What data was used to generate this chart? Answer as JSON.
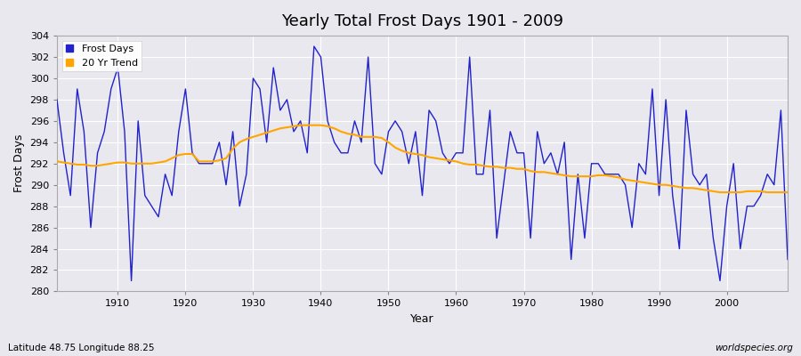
{
  "title": "Yearly Total Frost Days 1901 - 2009",
  "xlabel": "Year",
  "ylabel": "Frost Days",
  "subtitle": "Latitude 48.75 Longitude 88.25",
  "watermark": "worldspecies.org",
  "ylim": [
    280,
    304
  ],
  "yticks": [
    280,
    282,
    284,
    286,
    288,
    290,
    292,
    294,
    296,
    298,
    300,
    302,
    304
  ],
  "xticks": [
    1910,
    1920,
    1930,
    1940,
    1950,
    1960,
    1970,
    1980,
    1990,
    2000
  ],
  "line_color": "#2222cc",
  "trend_color": "#FFA500",
  "bg_color": "#e8e8ee",
  "years": [
    1901,
    1902,
    1903,
    1904,
    1905,
    1906,
    1907,
    1908,
    1909,
    1910,
    1911,
    1912,
    1913,
    1914,
    1915,
    1916,
    1917,
    1918,
    1919,
    1920,
    1921,
    1922,
    1923,
    1924,
    1925,
    1926,
    1927,
    1928,
    1929,
    1930,
    1931,
    1932,
    1933,
    1934,
    1935,
    1936,
    1937,
    1938,
    1939,
    1940,
    1941,
    1942,
    1943,
    1944,
    1945,
    1946,
    1947,
    1948,
    1949,
    1950,
    1951,
    1952,
    1953,
    1954,
    1955,
    1956,
    1957,
    1958,
    1959,
    1960,
    1961,
    1962,
    1963,
    1964,
    1965,
    1966,
    1967,
    1968,
    1969,
    1970,
    1971,
    1972,
    1973,
    1974,
    1975,
    1976,
    1977,
    1978,
    1979,
    1980,
    1981,
    1982,
    1983,
    1984,
    1985,
    1986,
    1987,
    1988,
    1989,
    1990,
    1991,
    1992,
    1993,
    1994,
    1995,
    1996,
    1997,
    1998,
    1999,
    2000,
    2001,
    2002,
    2003,
    2004,
    2005,
    2006,
    2007,
    2008,
    2009
  ],
  "frost_days": [
    298,
    293,
    289,
    299,
    295,
    286,
    293,
    295,
    299,
    301,
    295,
    281,
    296,
    289,
    288,
    287,
    291,
    289,
    295,
    299,
    293,
    292,
    292,
    292,
    294,
    290,
    295,
    288,
    291,
    300,
    299,
    294,
    301,
    297,
    298,
    295,
    296,
    293,
    303,
    302,
    296,
    294,
    293,
    293,
    296,
    294,
    302,
    292,
    291,
    295,
    296,
    295,
    292,
    295,
    289,
    297,
    296,
    293,
    292,
    293,
    293,
    302,
    291,
    291,
    297,
    285,
    290,
    295,
    293,
    293,
    285,
    295,
    292,
    293,
    291,
    294,
    283,
    291,
    285,
    292,
    292,
    291,
    291,
    291,
    290,
    286,
    292,
    291,
    299,
    289,
    298,
    289,
    284,
    297,
    291,
    290,
    291,
    285,
    281,
    288,
    292,
    284,
    288,
    288,
    289,
    291,
    290,
    297,
    283
  ],
  "trend_years": [
    1901,
    1902,
    1903,
    1904,
    1905,
    1906,
    1907,
    1908,
    1909,
    1910,
    1911,
    1912,
    1913,
    1914,
    1915,
    1916,
    1917,
    1918,
    1919,
    1920,
    1921,
    1922,
    1923,
    1924,
    1925,
    1926,
    1927,
    1928,
    1929,
    1930,
    1931,
    1932,
    1933,
    1934,
    1935,
    1936,
    1937,
    1938,
    1939,
    1940,
    1941,
    1942,
    1943,
    1944,
    1945,
    1946,
    1947,
    1948,
    1949,
    1950,
    1951,
    1952,
    1953,
    1954,
    1955,
    1956,
    1957,
    1958,
    1959,
    1960,
    1961,
    1962,
    1963,
    1964,
    1965,
    1966,
    1967,
    1968,
    1969,
    1970,
    1971,
    1972,
    1973,
    1974,
    1975,
    1976,
    1977,
    1978,
    1979,
    1980,
    1981,
    1982,
    1983,
    1984,
    1985,
    1986,
    1987,
    1988,
    1989,
    1990,
    1991,
    1992,
    1993,
    1994,
    1995,
    1996,
    1997,
    1998,
    1999,
    2000,
    2001,
    2002,
    2003,
    2004,
    2005,
    2006,
    2007,
    2008,
    2009
  ],
  "trend_values": [
    292.2,
    292.1,
    292.0,
    291.9,
    291.9,
    291.8,
    291.8,
    291.9,
    292.0,
    292.1,
    292.1,
    292.0,
    292.0,
    292.0,
    292.0,
    292.1,
    292.2,
    292.5,
    292.8,
    292.9,
    292.9,
    292.2,
    292.2,
    292.2,
    292.3,
    292.5,
    293.4,
    294.0,
    294.3,
    294.5,
    294.7,
    294.9,
    295.1,
    295.3,
    295.4,
    295.5,
    295.6,
    295.6,
    295.6,
    295.6,
    295.5,
    295.3,
    295.0,
    294.8,
    294.7,
    294.5,
    294.5,
    294.5,
    294.4,
    294.0,
    293.5,
    293.2,
    293.0,
    292.9,
    292.8,
    292.6,
    292.5,
    292.4,
    292.3,
    292.2,
    292.0,
    291.9,
    291.9,
    291.8,
    291.7,
    291.7,
    291.6,
    291.6,
    291.5,
    291.5,
    291.3,
    291.2,
    291.2,
    291.1,
    291.0,
    290.9,
    290.8,
    290.8,
    290.8,
    290.8,
    290.9,
    290.9,
    290.8,
    290.7,
    290.5,
    290.4,
    290.3,
    290.2,
    290.1,
    290.0,
    290.0,
    289.9,
    289.8,
    289.7,
    289.7,
    289.6,
    289.5,
    289.4,
    289.3,
    289.3,
    289.3,
    289.3,
    289.4,
    289.4,
    289.4,
    289.3,
    289.3,
    289.3,
    289.3
  ]
}
